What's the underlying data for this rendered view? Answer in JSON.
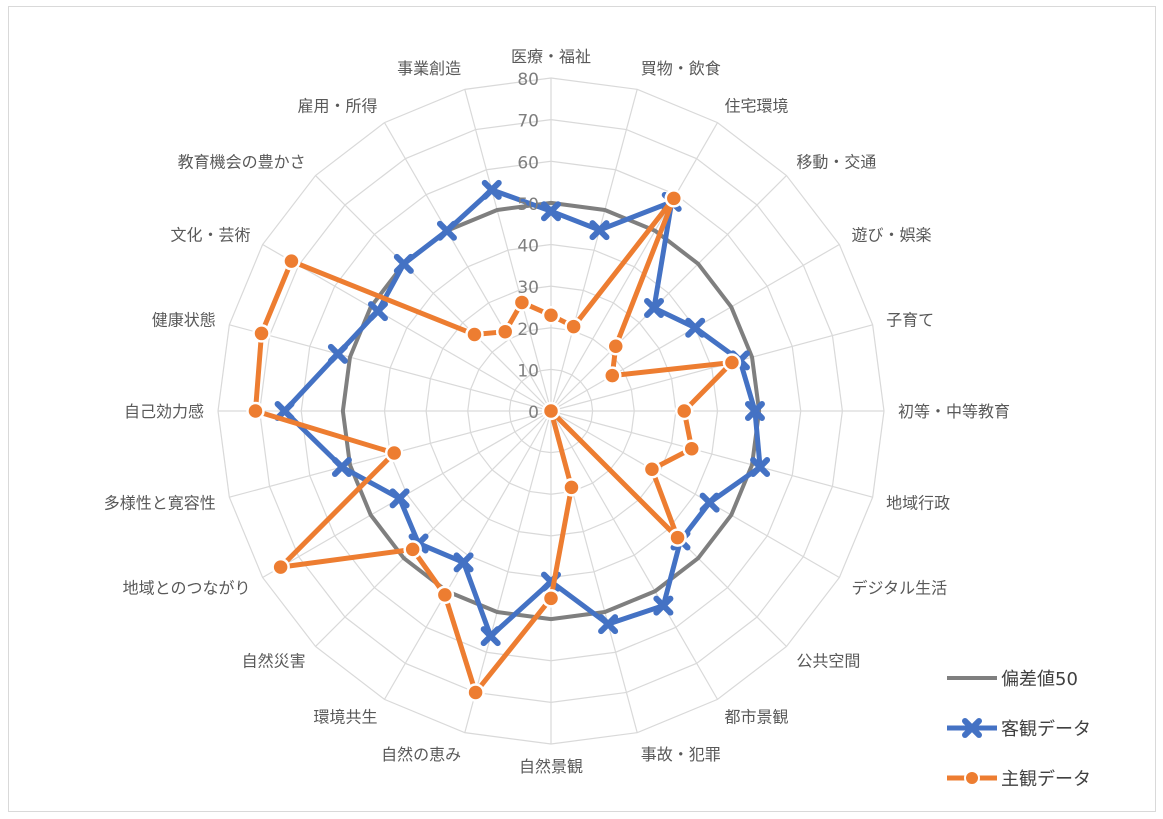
{
  "chart_data": {
    "type": "radar",
    "title": "",
    "categories": [
      "医療・福祉",
      "買物・飲食",
      "住宅環境",
      "移動・交通",
      "遊び・娯楽",
      "子育て",
      "初等・中等教育",
      "地域行政",
      "デジタル生活",
      "公共空間",
      "都市景観",
      "事故・犯罪",
      "自然景観",
      "自然の恵み",
      "環境共生",
      "自然災害",
      "地域とのつながり",
      "多様性と寛容性",
      "自己効力感",
      "健康状態",
      "文化・芸術",
      "教育機会の豊かさ",
      "雇用・所得",
      "事業創造"
    ],
    "radial_ticks": [
      "0",
      "10",
      "20",
      "30",
      "40",
      "50",
      "60",
      "70",
      "80"
    ],
    "rmin": 0,
    "rmax": 80,
    "grid": true,
    "legend_position": "bottom-right",
    "series": [
      {
        "name": "偏差値50",
        "color": "#7f7f7f",
        "marker": "none",
        "values": [
          50,
          50,
          50,
          50,
          50,
          50,
          50,
          50,
          50,
          50,
          50,
          50,
          50,
          50,
          50,
          50,
          50,
          50,
          50,
          50,
          50,
          50,
          50,
          50
        ]
      },
      {
        "name": "客観データ",
        "color": "#4472c4",
        "marker": "x",
        "values": [
          48,
          45,
          58,
          35,
          40,
          47,
          49,
          52,
          44,
          44,
          54,
          53,
          41,
          56,
          42,
          45,
          42,
          52,
          64,
          53,
          48,
          50,
          50,
          55
        ]
      },
      {
        "name": "主観データ",
        "color": "#ed7d31",
        "marker": "circle",
        "values": [
          23,
          21,
          59,
          22,
          17,
          45,
          32,
          35,
          28,
          43,
          0,
          19,
          45,
          70,
          51,
          47,
          75,
          39,
          71,
          72,
          72,
          26,
          22,
          27
        ]
      }
    ]
  }
}
